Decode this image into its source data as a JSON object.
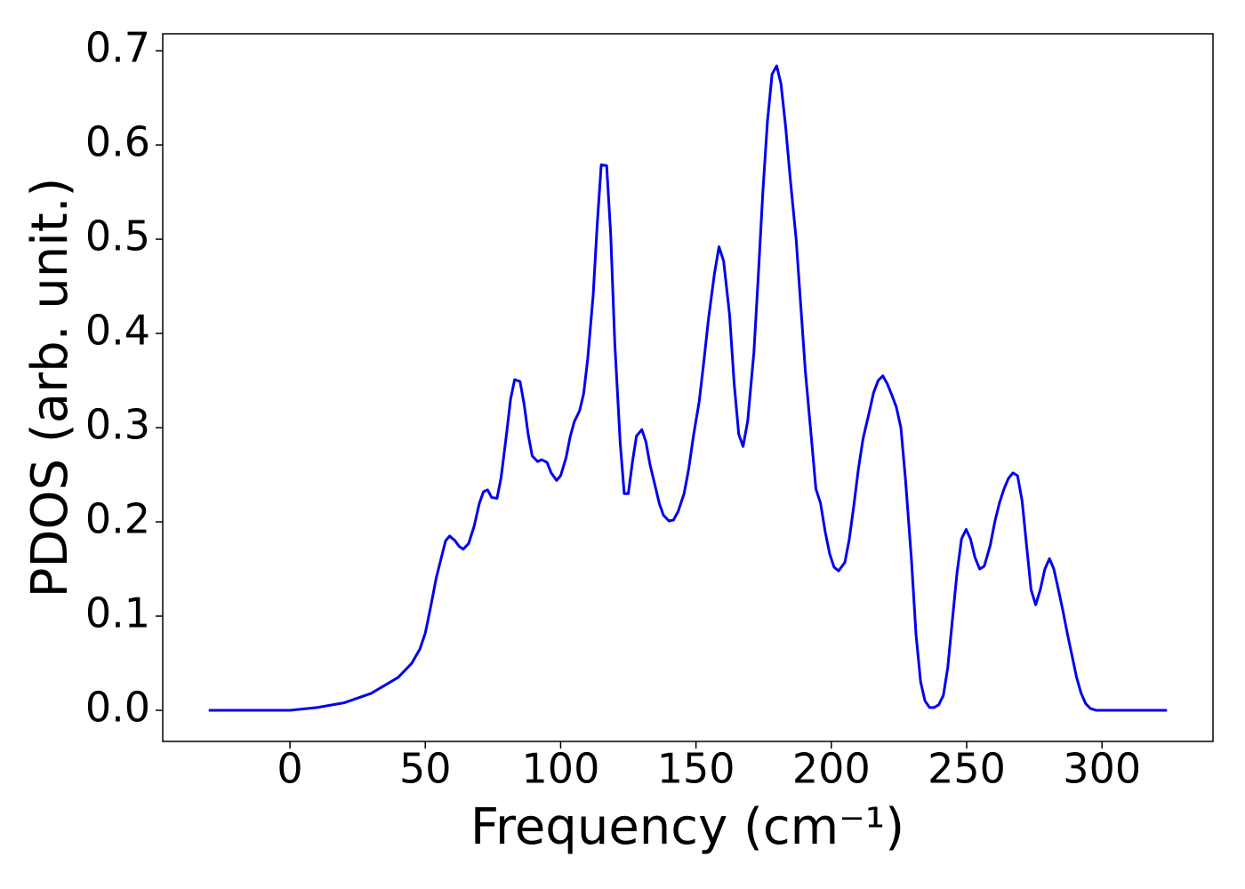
{
  "chart_data": {
    "type": "line",
    "xlabel": "Frequency (cm⁻¹)",
    "ylabel": "PDOS (arb. unit.)",
    "xlim": [
      -47,
      341
    ],
    "ylim": [
      -0.033,
      0.718
    ],
    "xticks": [
      0,
      50,
      100,
      150,
      200,
      250,
      300
    ],
    "yticks": [
      {
        "value": 0,
        "label": "0.0"
      },
      0.1,
      0.2,
      0.3,
      0.4,
      0.5,
      0.6,
      0.7
    ],
    "grid": false,
    "series": [
      {
        "color": "#0000ee",
        "x": [
          -30,
          0,
          10,
          20,
          30,
          40,
          45,
          48,
          50,
          52,
          54,
          56,
          57.5,
          59,
          61,
          62.5,
          64,
          66,
          68,
          70,
          71.5,
          73,
          74.5,
          76.5,
          78,
          80,
          81.5,
          83,
          85,
          86.5,
          88,
          89.5,
          91.5,
          93,
          95,
          96.5,
          98.5,
          100,
          102,
          103.5,
          105,
          107,
          108.5,
          110,
          112,
          113.5,
          115,
          117,
          118.5,
          120,
          122,
          123.5,
          125,
          126.5,
          128,
          130,
          131.5,
          133,
          135,
          136.5,
          138,
          140,
          141.7,
          143.4,
          145.6,
          147.3,
          149.0,
          151.2,
          152.9,
          154.6,
          156.8,
          158.5,
          160.2,
          162.4,
          164.1,
          165.8,
          167.4,
          169.1,
          171.4,
          173.0,
          174.7,
          176.4,
          178.1,
          179.8,
          181.4,
          183.1,
          184.8,
          187.0,
          188.7,
          190.4,
          192.6,
          194.3,
          196.0,
          197.7,
          199.4,
          201.0,
          202.7,
          205.0,
          206.6,
          208.3,
          210.0,
          211.7,
          213.9,
          215.6,
          217.3,
          219.0,
          220.6,
          222.3,
          224.0,
          225.7,
          227.4,
          229.6,
          231.3,
          233.0,
          234.6,
          236.3,
          238.0,
          239.7,
          241.4,
          243.0,
          244.7,
          246.4,
          248.1,
          249.8,
          251.4,
          253.1,
          254.8,
          256.5,
          258.7,
          260.4,
          262.1,
          263.8,
          265.4,
          267.1,
          268.8,
          270.5,
          272.2,
          273.8,
          275.5,
          277.2,
          278.9,
          280.6,
          282.2,
          283.9,
          285.6,
          287.3,
          289.0,
          290.6,
          292.3,
          294.0,
          295.7,
          297.9,
          305,
          324
        ],
        "values": [
          0,
          0,
          0.003,
          0.008,
          0.018,
          0.035,
          0.05,
          0.065,
          0.082,
          0.11,
          0.14,
          0.163,
          0.18,
          0.185,
          0.18,
          0.174,
          0.171,
          0.177,
          0.195,
          0.22,
          0.232,
          0.234,
          0.226,
          0.225,
          0.247,
          0.293,
          0.33,
          0.351,
          0.349,
          0.325,
          0.293,
          0.27,
          0.264,
          0.266,
          0.263,
          0.252,
          0.244,
          0.249,
          0.268,
          0.29,
          0.306,
          0.318,
          0.336,
          0.373,
          0.44,
          0.515,
          0.579,
          0.578,
          0.505,
          0.39,
          0.284,
          0.23,
          0.23,
          0.263,
          0.291,
          0.298,
          0.285,
          0.261,
          0.237,
          0.219,
          0.207,
          0.201,
          0.202,
          0.211,
          0.23,
          0.256,
          0.29,
          0.328,
          0.37,
          0.415,
          0.463,
          0.492,
          0.477,
          0.42,
          0.347,
          0.293,
          0.28,
          0.307,
          0.38,
          0.46,
          0.55,
          0.625,
          0.675,
          0.684,
          0.665,
          0.62,
          0.565,
          0.5,
          0.43,
          0.36,
          0.29,
          0.235,
          0.22,
          0.19,
          0.166,
          0.152,
          0.148,
          0.157,
          0.181,
          0.217,
          0.256,
          0.288,
          0.315,
          0.337,
          0.35,
          0.355,
          0.347,
          0.335,
          0.322,
          0.3,
          0.245,
          0.16,
          0.08,
          0.03,
          0.01,
          0.003,
          0.003,
          0.006,
          0.016,
          0.045,
          0.095,
          0.145,
          0.182,
          0.192,
          0.182,
          0.162,
          0.15,
          0.153,
          0.175,
          0.2,
          0.22,
          0.235,
          0.246,
          0.252,
          0.249,
          0.222,
          0.173,
          0.128,
          0.112,
          0.128,
          0.15,
          0.161,
          0.15,
          0.128,
          0.105,
          0.08,
          0.057,
          0.035,
          0.018,
          0.007,
          0.002,
          0,
          0,
          0
        ]
      }
    ]
  }
}
